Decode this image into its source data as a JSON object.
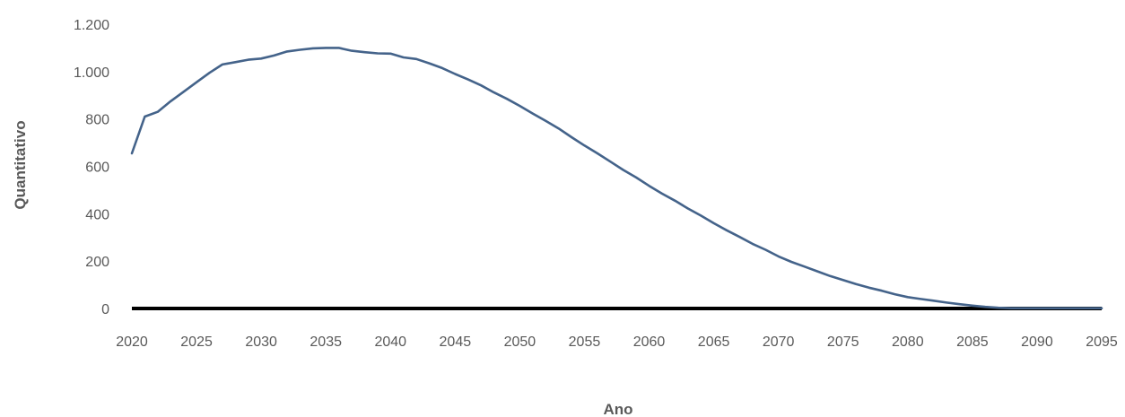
{
  "chart_data": {
    "type": "line",
    "title": "",
    "xlabel": "Ano",
    "ylabel": "Quantitativo",
    "xlim": [
      2020,
      2095
    ],
    "ylim": [
      0,
      1200
    ],
    "x_ticks": [
      2020,
      2025,
      2030,
      2035,
      2040,
      2045,
      2050,
      2055,
      2060,
      2065,
      2070,
      2075,
      2080,
      2085,
      2090,
      2095
    ],
    "y_ticks": [
      {
        "value": 0,
        "label": "0"
      },
      {
        "value": 200,
        "label": "200"
      },
      {
        "value": 400,
        "label": "400"
      },
      {
        "value": 600,
        "label": "600"
      },
      {
        "value": 800,
        "label": "800"
      },
      {
        "value": 1000,
        "label": "1.000"
      },
      {
        "value": 1200,
        "label": "1.200"
      }
    ],
    "grid": false,
    "legend": "none",
    "series": [
      {
        "color": "#44638a",
        "x": [
          2020,
          2021,
          2022,
          2023,
          2024,
          2025,
          2026,
          2027,
          2028,
          2029,
          2030,
          2031,
          2032,
          2033,
          2034,
          2035,
          2036,
          2037,
          2038,
          2039,
          2040,
          2041,
          2042,
          2043,
          2044,
          2045,
          2046,
          2047,
          2048,
          2049,
          2050,
          2051,
          2052,
          2053,
          2054,
          2055,
          2056,
          2057,
          2058,
          2059,
          2060,
          2061,
          2062,
          2063,
          2064,
          2065,
          2066,
          2067,
          2068,
          2069,
          2070,
          2071,
          2072,
          2073,
          2074,
          2075,
          2076,
          2077,
          2078,
          2079,
          2080,
          2081,
          2082,
          2083,
          2084,
          2085,
          2086,
          2087,
          2088,
          2089,
          2090,
          2091,
          2092,
          2093,
          2094,
          2095
        ],
        "y": [
          655,
          810,
          830,
          875,
          915,
          955,
          995,
          1030,
          1040,
          1050,
          1055,
          1068,
          1085,
          1092,
          1098,
          1100,
          1100,
          1088,
          1082,
          1077,
          1076,
          1060,
          1053,
          1035,
          1015,
          990,
          967,
          942,
          912,
          885,
          855,
          823,
          792,
          760,
          723,
          688,
          655,
          620,
          585,
          553,
          518,
          485,
          455,
          422,
          392,
          360,
          330,
          302,
          273,
          248,
          220,
          197,
          177,
          157,
          137,
          120,
          103,
          88,
          75,
          60,
          48,
          40,
          33,
          25,
          18,
          12,
          7,
          3,
          1,
          1,
          1,
          1,
          1,
          1,
          1,
          1
        ]
      }
    ]
  }
}
